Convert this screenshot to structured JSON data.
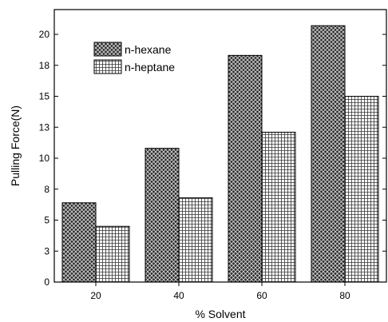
{
  "chart_data": {
    "type": "bar",
    "categories": [
      "20",
      "40",
      "60",
      "80"
    ],
    "series": [
      {
        "name": "n-hexane",
        "values": [
          6.4,
          10.8,
          18.3,
          20.7
        ],
        "pattern": "crosshatch-dark"
      },
      {
        "name": "n-heptane",
        "values": [
          4.5,
          6.8,
          12.1,
          15.0
        ],
        "pattern": "grid-light"
      }
    ],
    "title": "",
    "xlabel": "% Solvent",
    "ylabel": "Pulling Force(N)",
    "ylim": [
      0,
      22
    ],
    "yticks": [
      0,
      2.5,
      5,
      7.5,
      10,
      12.5,
      15,
      17.5,
      20
    ],
    "ytick_labels": [
      "0",
      "3",
      "5",
      "8",
      "10",
      "13",
      "15",
      "18",
      "20"
    ],
    "grid": false,
    "legend_position": "top-left"
  }
}
